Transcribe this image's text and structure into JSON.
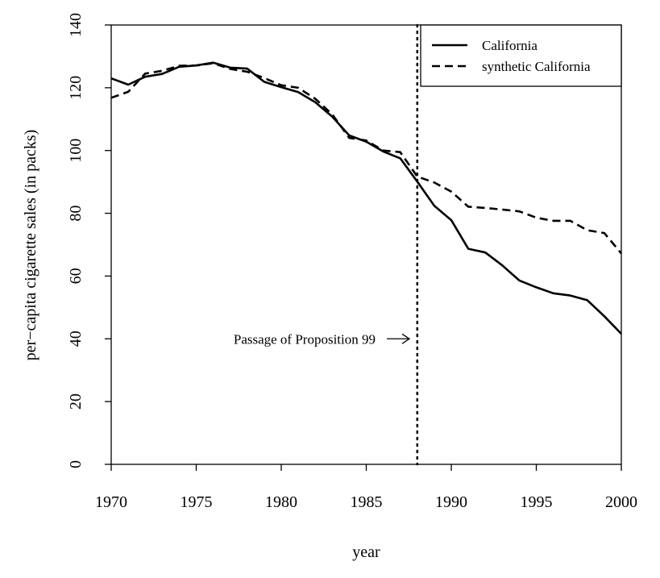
{
  "chart_data": {
    "type": "line",
    "title": "",
    "xlabel": "year",
    "ylabel": "per−capita cigarette sales (in packs)",
    "xlim": [
      1970,
      2000
    ],
    "ylim": [
      0,
      140
    ],
    "x_ticks": [
      1970,
      1975,
      1980,
      1985,
      1990,
      1995,
      2000
    ],
    "y_ticks": [
      0,
      20,
      40,
      60,
      80,
      100,
      120,
      140
    ],
    "grid": false,
    "legend_position": "top-right",
    "x": [
      1970,
      1971,
      1972,
      1973,
      1974,
      1975,
      1976,
      1977,
      1978,
      1979,
      1980,
      1981,
      1982,
      1983,
      1984,
      1985,
      1986,
      1987,
      1988,
      1989,
      1990,
      1991,
      1992,
      1993,
      1994,
      1995,
      1996,
      1997,
      1998,
      1999,
      2000
    ],
    "series": [
      {
        "name": "California",
        "style": "solid",
        "values": [
          123.0,
          121.0,
          123.5,
          124.4,
          126.7,
          127.1,
          128.0,
          126.4,
          126.1,
          121.9,
          120.2,
          118.6,
          115.4,
          110.8,
          104.8,
          102.8,
          99.7,
          97.5,
          90.1,
          82.4,
          77.8,
          68.7,
          67.5,
          63.4,
          58.6,
          56.4,
          54.5,
          53.8,
          52.3,
          47.2,
          41.6
        ]
      },
      {
        "name": "synthetic California",
        "style": "dashed",
        "values": [
          116.8,
          118.7,
          124.5,
          125.4,
          127.0,
          127.1,
          127.8,
          126.0,
          125.1,
          123.1,
          120.8,
          120.0,
          116.5,
          111.5,
          104.0,
          103.2,
          100.0,
          99.5,
          91.7,
          89.8,
          86.9,
          82.1,
          81.7,
          81.2,
          80.6,
          78.6,
          77.6,
          77.6,
          74.6,
          73.7,
          67.2
        ]
      }
    ],
    "intervention": {
      "x": 1988,
      "style": "dotted",
      "annotation": "Passage of Proposition 99",
      "annotation_y": 40
    }
  }
}
